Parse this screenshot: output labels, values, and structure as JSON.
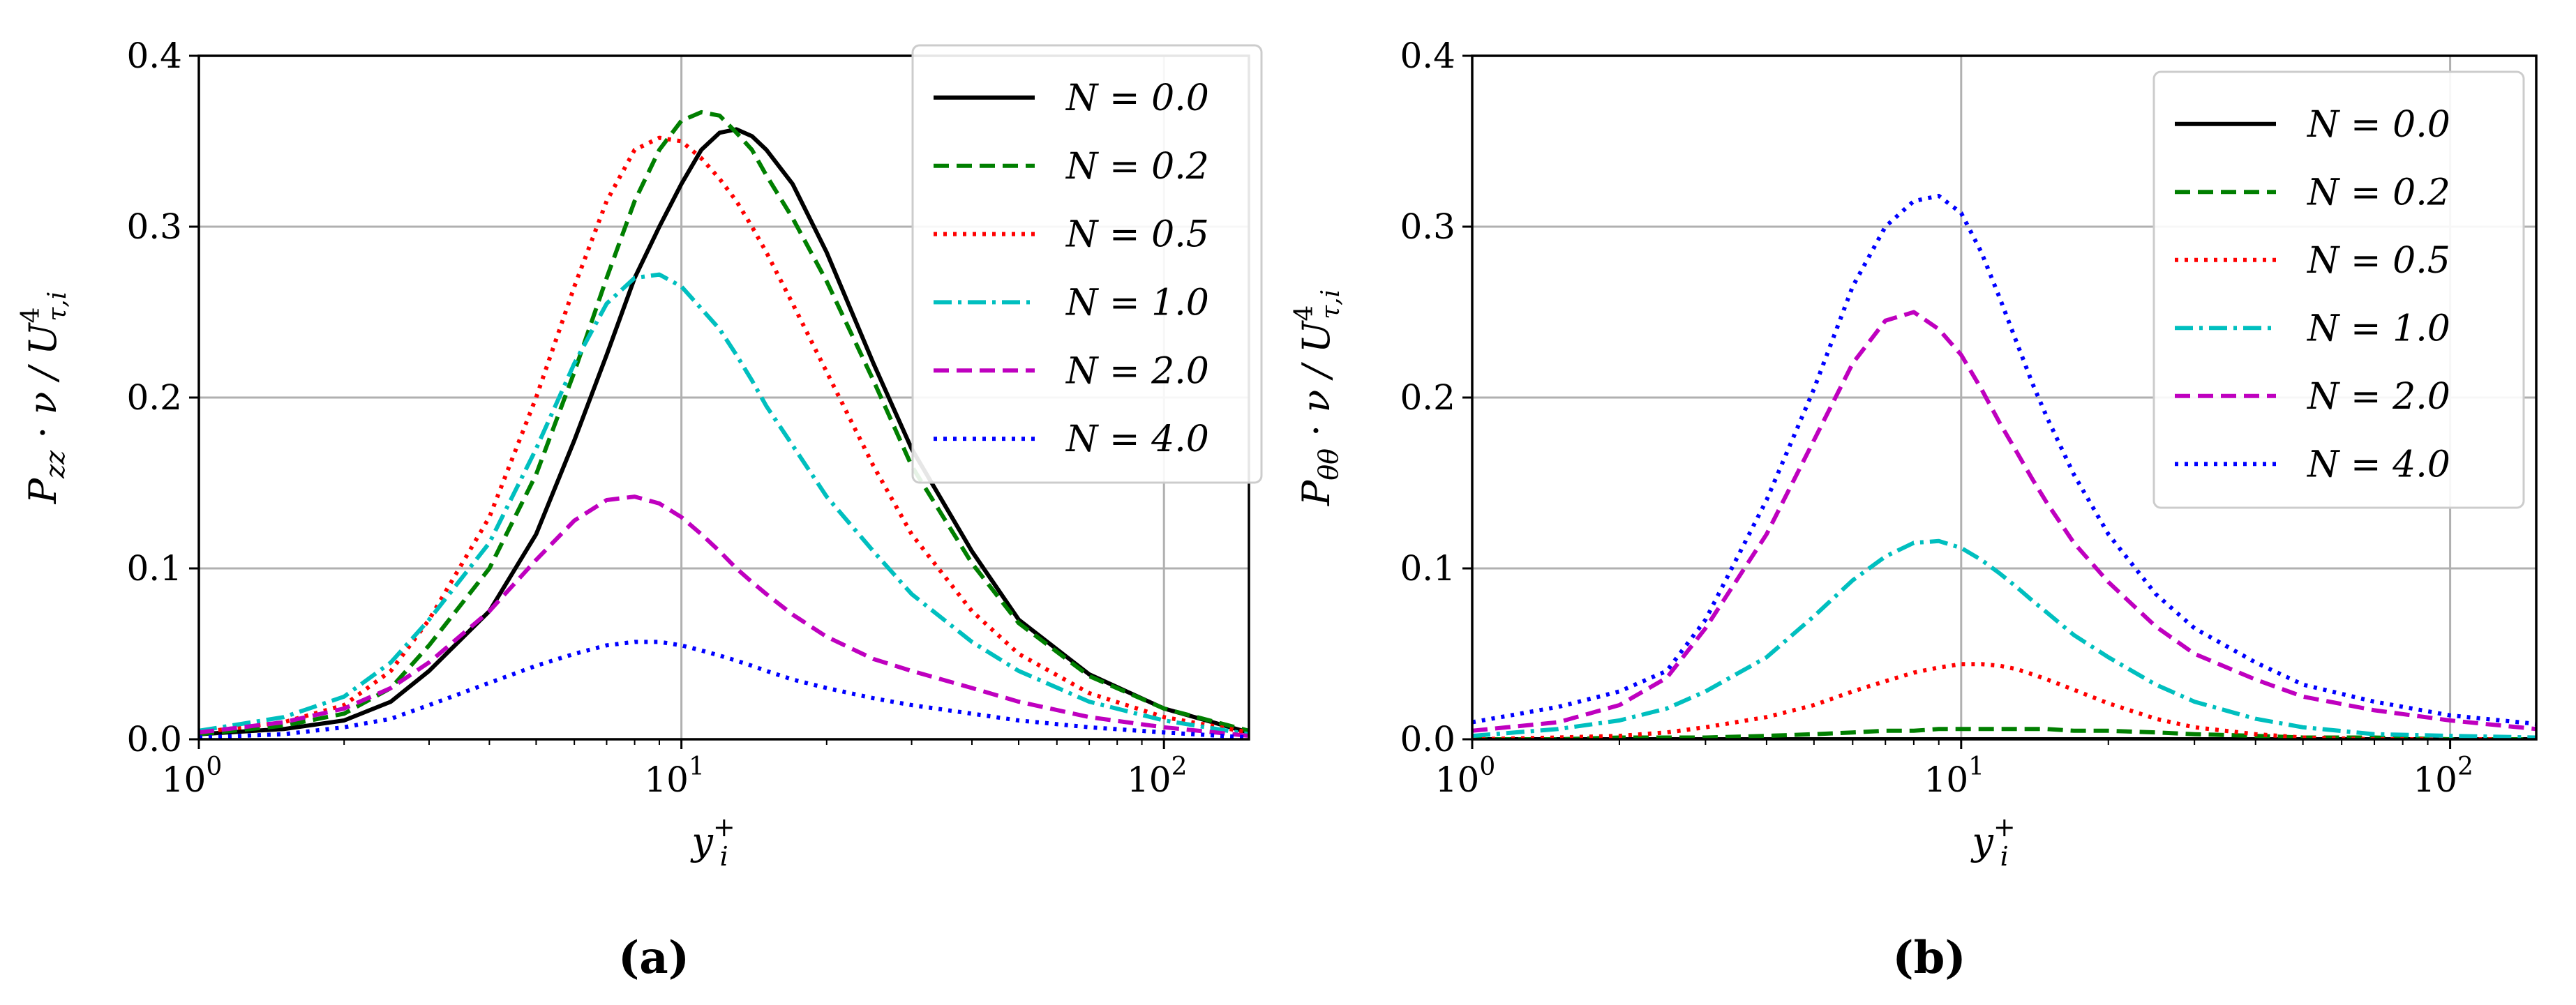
{
  "chart_data": [
    {
      "type": "line",
      "caption": "(a)",
      "xlabel": "y_i^+",
      "ylabel": "P_zz · ν / U^4_τ,i",
      "xscale": "log",
      "xlim": [
        1,
        150
      ],
      "ylim": [
        0,
        0.4
      ],
      "grid": true,
      "legend_position": "top-right",
      "x_ticks": [
        {
          "v": 1,
          "base": "10",
          "exp": "0"
        },
        {
          "v": 10,
          "base": "10",
          "exp": "1"
        },
        {
          "v": 100,
          "base": "10",
          "exp": "2"
        }
      ],
      "y_ticks": [
        {
          "v": 0.0,
          "label": "0.0"
        },
        {
          "v": 0.1,
          "label": "0.1"
        },
        {
          "v": 0.2,
          "label": "0.2"
        },
        {
          "v": 0.3,
          "label": "0.3"
        },
        {
          "v": 0.4,
          "label": "0.4"
        }
      ],
      "x": [
        1,
        1.5,
        2,
        2.5,
        3,
        4,
        5,
        6,
        7,
        8,
        9,
        10,
        11,
        12,
        13,
        14,
        15,
        17,
        20,
        25,
        30,
        40,
        50,
        70,
        100,
        150
      ],
      "series": [
        {
          "name": "N = 0.0",
          "color": "#000000",
          "dash": "",
          "values": [
            0.003,
            0.006,
            0.011,
            0.022,
            0.04,
            0.075,
            0.12,
            0.175,
            0.225,
            0.27,
            0.3,
            0.325,
            0.345,
            0.355,
            0.357,
            0.353,
            0.345,
            0.325,
            0.285,
            0.22,
            0.17,
            0.11,
            0.07,
            0.038,
            0.018,
            0.004
          ]
        },
        {
          "name": "N = 0.2",
          "color": "#007f00",
          "dash": "22 11",
          "values": [
            0.003,
            0.008,
            0.015,
            0.03,
            0.055,
            0.1,
            0.155,
            0.215,
            0.27,
            0.315,
            0.345,
            0.362,
            0.367,
            0.365,
            0.355,
            0.345,
            0.33,
            0.305,
            0.268,
            0.21,
            0.16,
            0.103,
            0.068,
            0.037,
            0.018,
            0.005
          ]
        },
        {
          "name": "N = 0.5",
          "color": "#ff0000",
          "dash": "5 9",
          "values": [
            0.004,
            0.01,
            0.02,
            0.04,
            0.07,
            0.13,
            0.2,
            0.265,
            0.315,
            0.345,
            0.352,
            0.35,
            0.34,
            0.328,
            0.315,
            0.3,
            0.285,
            0.255,
            0.215,
            0.16,
            0.12,
            0.075,
            0.05,
            0.027,
            0.013,
            0.004
          ]
        },
        {
          "name": "N = 1.0",
          "color": "#00bfbf",
          "dash": "26 9 5 9",
          "values": [
            0.005,
            0.013,
            0.025,
            0.045,
            0.07,
            0.115,
            0.17,
            0.22,
            0.255,
            0.27,
            0.272,
            0.265,
            0.252,
            0.24,
            0.225,
            0.21,
            0.195,
            0.172,
            0.142,
            0.11,
            0.085,
            0.057,
            0.04,
            0.022,
            0.011,
            0.003
          ]
        },
        {
          "name": "N = 2.0",
          "color": "#bf00bf",
          "dash": "22 11",
          "values": [
            0.004,
            0.01,
            0.018,
            0.03,
            0.045,
            0.075,
            0.105,
            0.128,
            0.14,
            0.142,
            0.138,
            0.13,
            0.12,
            0.11,
            0.1,
            0.092,
            0.085,
            0.073,
            0.06,
            0.047,
            0.04,
            0.03,
            0.022,
            0.013,
            0.007,
            0.002
          ]
        },
        {
          "name": "N = 4.0",
          "color": "#0000ff",
          "dash": "5 9",
          "values": [
            0.001,
            0.003,
            0.007,
            0.012,
            0.02,
            0.033,
            0.043,
            0.05,
            0.055,
            0.057,
            0.057,
            0.055,
            0.052,
            0.049,
            0.046,
            0.043,
            0.04,
            0.035,
            0.03,
            0.024,
            0.02,
            0.015,
            0.011,
            0.007,
            0.004,
            0.001
          ]
        }
      ]
    },
    {
      "type": "line",
      "caption": "(b)",
      "xlabel": "y_i^+",
      "ylabel": "P_θθ · ν / U^4_τ,i",
      "xscale": "log",
      "xlim": [
        1,
        150
      ],
      "ylim": [
        0,
        0.4
      ],
      "grid": true,
      "legend_position": "top-right",
      "x_ticks": [
        {
          "v": 1,
          "base": "10",
          "exp": "0"
        },
        {
          "v": 10,
          "base": "10",
          "exp": "1"
        },
        {
          "v": 100,
          "base": "10",
          "exp": "2"
        }
      ],
      "y_ticks": [
        {
          "v": 0.0,
          "label": "0.0"
        },
        {
          "v": 0.1,
          "label": "0.1"
        },
        {
          "v": 0.2,
          "label": "0.2"
        },
        {
          "v": 0.3,
          "label": "0.3"
        },
        {
          "v": 0.4,
          "label": "0.4"
        }
      ],
      "x": [
        1,
        1.5,
        2,
        2.5,
        3,
        4,
        5,
        6,
        7,
        8,
        9,
        10,
        11,
        12,
        13,
        14,
        15,
        17,
        20,
        25,
        30,
        40,
        50,
        70,
        100,
        150
      ],
      "series": [
        {
          "name": "N = 0.0",
          "color": "#000000",
          "dash": "",
          "values": [
            0,
            0,
            0,
            0,
            0,
            0,
            0,
            0,
            0,
            0,
            0,
            0,
            0,
            0,
            0,
            0,
            0,
            0,
            0,
            0,
            0,
            0,
            0,
            0,
            0,
            0
          ]
        },
        {
          "name": "N = 0.2",
          "color": "#007f00",
          "dash": "22 11",
          "values": [
            0.0,
            0.0,
            0.001,
            0.001,
            0.001,
            0.002,
            0.003,
            0.004,
            0.005,
            0.005,
            0.006,
            0.006,
            0.006,
            0.006,
            0.006,
            0.006,
            0.006,
            0.005,
            0.005,
            0.004,
            0.003,
            0.002,
            0.001,
            0.001,
            0.0,
            0.0
          ]
        },
        {
          "name": "N = 0.5",
          "color": "#ff0000",
          "dash": "5 9",
          "values": [
            0.0,
            0.001,
            0.002,
            0.004,
            0.007,
            0.013,
            0.02,
            0.028,
            0.034,
            0.039,
            0.042,
            0.044,
            0.044,
            0.043,
            0.041,
            0.038,
            0.035,
            0.029,
            0.021,
            0.012,
            0.007,
            0.003,
            0.001,
            0.0,
            0.0,
            0.0
          ]
        },
        {
          "name": "N = 1.0",
          "color": "#00bfbf",
          "dash": "26 9 5 9",
          "values": [
            0.002,
            0.006,
            0.011,
            0.018,
            0.028,
            0.048,
            0.072,
            0.093,
            0.107,
            0.115,
            0.116,
            0.112,
            0.105,
            0.097,
            0.089,
            0.081,
            0.074,
            0.061,
            0.048,
            0.032,
            0.022,
            0.012,
            0.007,
            0.003,
            0.002,
            0.001
          ]
        },
        {
          "name": "N = 2.0",
          "color": "#bf00bf",
          "dash": "22 11",
          "values": [
            0.005,
            0.01,
            0.02,
            0.036,
            0.065,
            0.12,
            0.175,
            0.22,
            0.245,
            0.25,
            0.24,
            0.225,
            0.205,
            0.185,
            0.168,
            0.152,
            0.138,
            0.115,
            0.092,
            0.066,
            0.05,
            0.035,
            0.025,
            0.017,
            0.011,
            0.006
          ]
        },
        {
          "name": "N = 4.0",
          "color": "#0000ff",
          "dash": "5 9",
          "values": [
            0.01,
            0.019,
            0.028,
            0.04,
            0.07,
            0.14,
            0.205,
            0.265,
            0.3,
            0.315,
            0.318,
            0.308,
            0.285,
            0.258,
            0.232,
            0.208,
            0.188,
            0.155,
            0.12,
            0.085,
            0.065,
            0.045,
            0.032,
            0.022,
            0.014,
            0.009
          ]
        }
      ]
    }
  ]
}
